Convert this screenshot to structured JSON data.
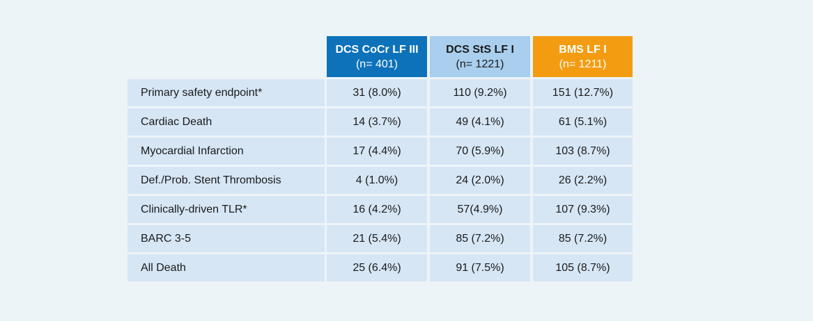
{
  "header": {
    "columns": [
      {
        "name": "DCS CoCr LF III",
        "n": "(n= 401)"
      },
      {
        "name": "DCS StS LF I",
        "n": "(n= 1221)"
      },
      {
        "name": "BMS LF I",
        "n": "(n= 1211)"
      }
    ]
  },
  "rows": [
    {
      "label": "Primary safety endpoint*",
      "values": [
        "31 (8.0%)",
        "110 (9.2%)",
        "151 (12.7%)"
      ]
    },
    {
      "label": "Cardiac Death",
      "values": [
        "14 (3.7%)",
        "49 (4.1%)",
        "61 (5.1%)"
      ]
    },
    {
      "label": "Myocardial Infarction",
      "values": [
        "17 (4.4%)",
        "70 (5.9%)",
        "103 (8.7%)"
      ]
    },
    {
      "label": "Def./Prob. Stent Thrombosis",
      "values": [
        "4 (1.0%)",
        "24 (2.0%)",
        "26 (2.2%)"
      ]
    },
    {
      "label": "Clinically-driven TLR*",
      "values": [
        "16 (4.2%)",
        "57(4.9%)",
        "107 (9.3%)"
      ]
    },
    {
      "label": "BARC 3-5",
      "values": [
        "21 (5.4%)",
        "85 (7.2%)",
        "85 (7.2%)"
      ]
    },
    {
      "label": "All Death",
      "values": [
        "25 (6.4%)",
        "91 (7.5%)",
        "105 (8.7%)"
      ]
    }
  ],
  "colors": {
    "col1": "#0d72b9",
    "col2": "#a9ceee",
    "col3": "#f39c12",
    "cell": "#d6e6f5",
    "background": "#edf4f8"
  }
}
